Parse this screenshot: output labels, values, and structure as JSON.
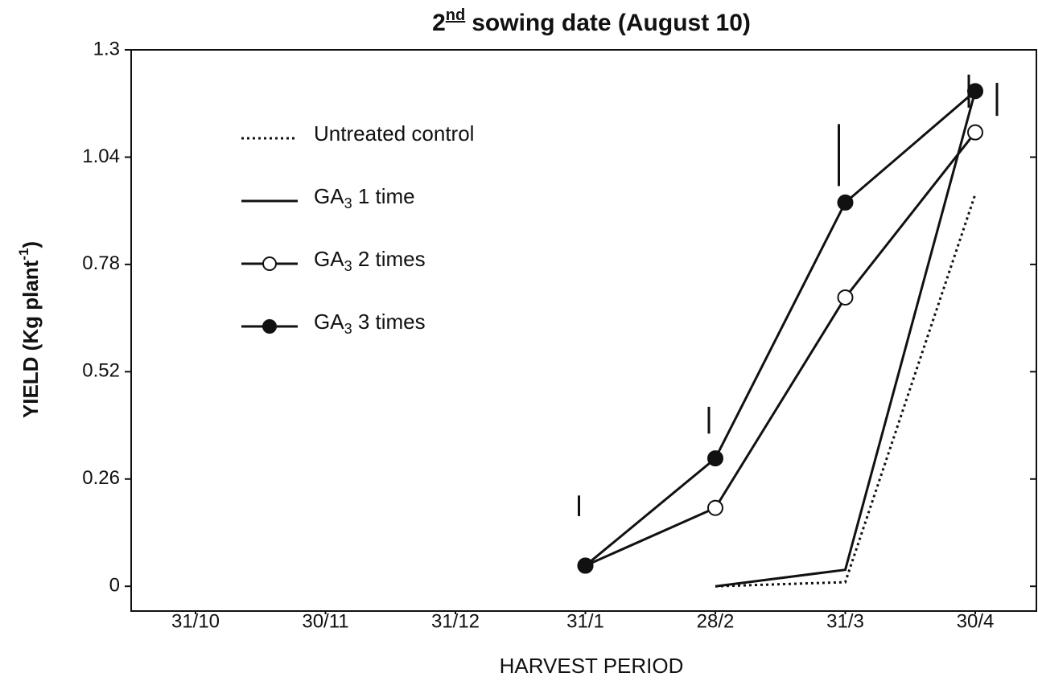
{
  "chart_data": {
    "type": "line",
    "title_prefix": "2",
    "title_sup": "nd",
    "title_rest": "sowing date (August 10)",
    "y_label": "YIELD (Kg plant",
    "y_label_sup": "-1",
    "y_label_end": ")",
    "x_label": "HARVEST PERIOD",
    "categories": [
      "31/10",
      "30/11",
      "31/12",
      "31/1",
      "28/2",
      "31/3",
      "30/4"
    ],
    "ylim": [
      -0.06,
      1.3
    ],
    "yticks": [
      0,
      0.26,
      0.52,
      0.78,
      1.04,
      1.3
    ],
    "series": [
      {
        "name": "Untreated control",
        "color": "#111",
        "style": "dotted",
        "marker": "none",
        "values": [
          null,
          null,
          null,
          null,
          0,
          0.01,
          0.95
        ]
      },
      {
        "name": "GA3 1 time",
        "color": "#111",
        "style": "solid",
        "marker": "none",
        "values": [
          null,
          null,
          null,
          null,
          0,
          0.04,
          1.2
        ]
      },
      {
        "name": "GA3 2 times",
        "color": "#111",
        "style": "solid",
        "marker": "open",
        "values": [
          null,
          null,
          null,
          0.05,
          0.19,
          0.7,
          1.1
        ]
      },
      {
        "name": "GA3 3 times",
        "color": "#111",
        "style": "solid",
        "marker": "filled",
        "values": [
          null,
          null,
          null,
          0.05,
          0.31,
          0.93,
          1.2
        ]
      }
    ],
    "error_bars": [
      {
        "category": 3,
        "low": 0.17,
        "high": 0.22
      },
      {
        "category": 4,
        "low": 0.37,
        "high": 0.435
      },
      {
        "category": 5,
        "low": 0.97,
        "high": 1.12
      },
      {
        "category": 6,
        "low": 1.16,
        "high": 1.24
      },
      {
        "category": 6,
        "low": 1.14,
        "high": 1.22
      }
    ]
  }
}
